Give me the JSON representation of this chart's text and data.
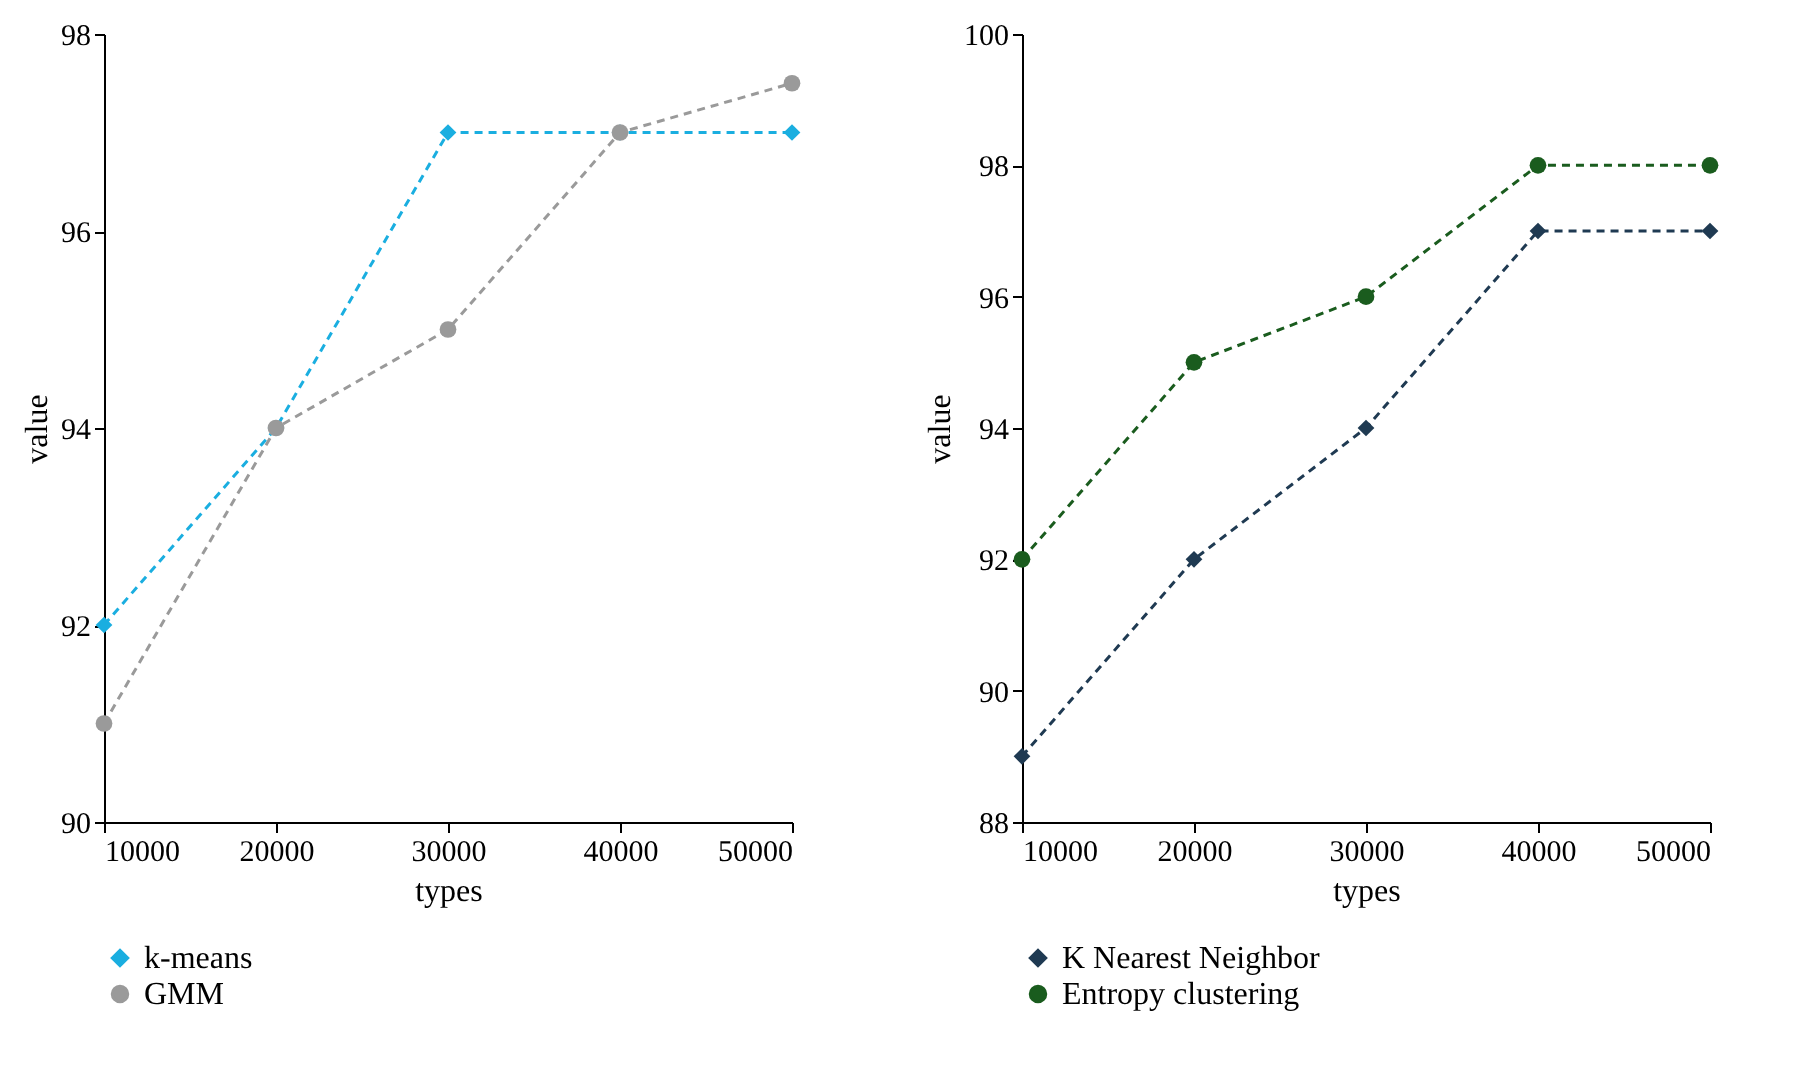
{
  "chart_data": [
    {
      "type": "line",
      "xlabel": "types",
      "ylabel": "value",
      "x": [
        10000,
        20000,
        30000,
        40000,
        50000
      ],
      "xlim": [
        10000,
        50000
      ],
      "xticks": [
        10000,
        20000,
        30000,
        40000,
        50000
      ],
      "ylim": [
        90,
        98
      ],
      "yticks": [
        90,
        92,
        94,
        96,
        98
      ],
      "legend": "bottom",
      "line_style": "dashed",
      "grid": false,
      "series": [
        {
          "name": "k-means",
          "color": "#1aaee0",
          "marker": "diamond",
          "values": [
            92,
            94,
            97,
            97,
            97
          ]
        },
        {
          "name": "GMM",
          "color": "#9a9a9a",
          "marker": "circle",
          "values": [
            91,
            94,
            95,
            97,
            97.5
          ]
        }
      ]
    },
    {
      "type": "line",
      "xlabel": "types",
      "ylabel": "value",
      "x": [
        10000,
        20000,
        30000,
        40000,
        50000
      ],
      "xlim": [
        10000,
        50000
      ],
      "xticks": [
        10000,
        20000,
        30000,
        40000,
        50000
      ],
      "ylim": [
        88,
        100
      ],
      "yticks": [
        88,
        90,
        92,
        94,
        96,
        98,
        100
      ],
      "legend": "bottom",
      "line_style": "dashed",
      "grid": false,
      "series": [
        {
          "name": "K Nearest Neighbor",
          "color": "#1f3a52",
          "marker": "diamond",
          "values": [
            89,
            92,
            94,
            97,
            97
          ]
        },
        {
          "name": "Entropy clustering",
          "color": "#1a5c1e",
          "marker": "circle",
          "values": [
            92,
            95,
            96,
            98,
            98
          ]
        }
      ]
    }
  ]
}
